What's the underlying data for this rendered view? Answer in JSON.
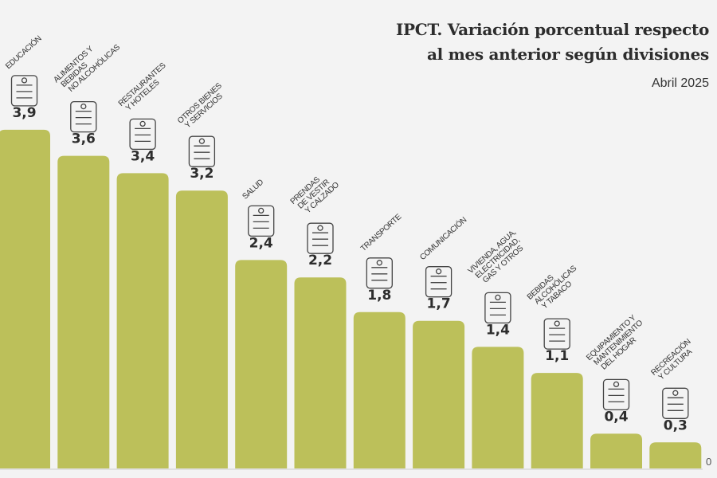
{
  "chart_data": {
    "type": "bar",
    "title": "IPCT. Variación porcentual respecto\nal mes anterior según divisiones",
    "subtitle": "Abril 2025",
    "categories": [
      "EDUCACIÓN",
      "ALIMENTOS Y\nBEBIDAS\nNO ALCOHÓLICAS",
      "RESTAURANTES\nY  HOTELES",
      "OTROS BIENES\nY SERVICIOS",
      "SALUD",
      "PRENDAS\nDE VESTIR\nY CALZADO",
      "TRANSPORTE",
      "COMUNICACIÓN",
      "VIVIENDA, AGUA,\nELECTRICIDAD,\nGAS Y OTROS",
      "BEBIDAS\nALCOHÓLICAS\nY TABACO",
      "EQUIPAMIENTO Y\nMANTENIMIENTO\nDEL HOGAR",
      "RECREACIÓN\nY CULTURA"
    ],
    "values": [
      3.9,
      3.6,
      3.4,
      3.2,
      2.4,
      2.2,
      1.8,
      1.7,
      1.4,
      1.1,
      0.4,
      0.3
    ],
    "value_labels": [
      "3,9",
      "3,6",
      "3,4",
      "3,2",
      "2,4",
      "2,2",
      "1,8",
      "1,7",
      "1,4",
      "1,1",
      "0,4",
      "0,3"
    ],
    "icons": [
      "diploma-icon",
      "salad-bowl-icon",
      "plate-suitcase-icon",
      "gift-icon",
      "hospital-icon",
      "clothes-icon",
      "bus-icon",
      "phone-icon",
      "house-bill-icon",
      "wine-bottle-icon",
      "microwave-icon",
      "camera-icon"
    ],
    "y_tick_labels": [
      "0"
    ],
    "ylim": [
      0,
      3.9
    ],
    "grid": false,
    "bar_color": "#bcc05a",
    "background": "#f3f3f3"
  }
}
